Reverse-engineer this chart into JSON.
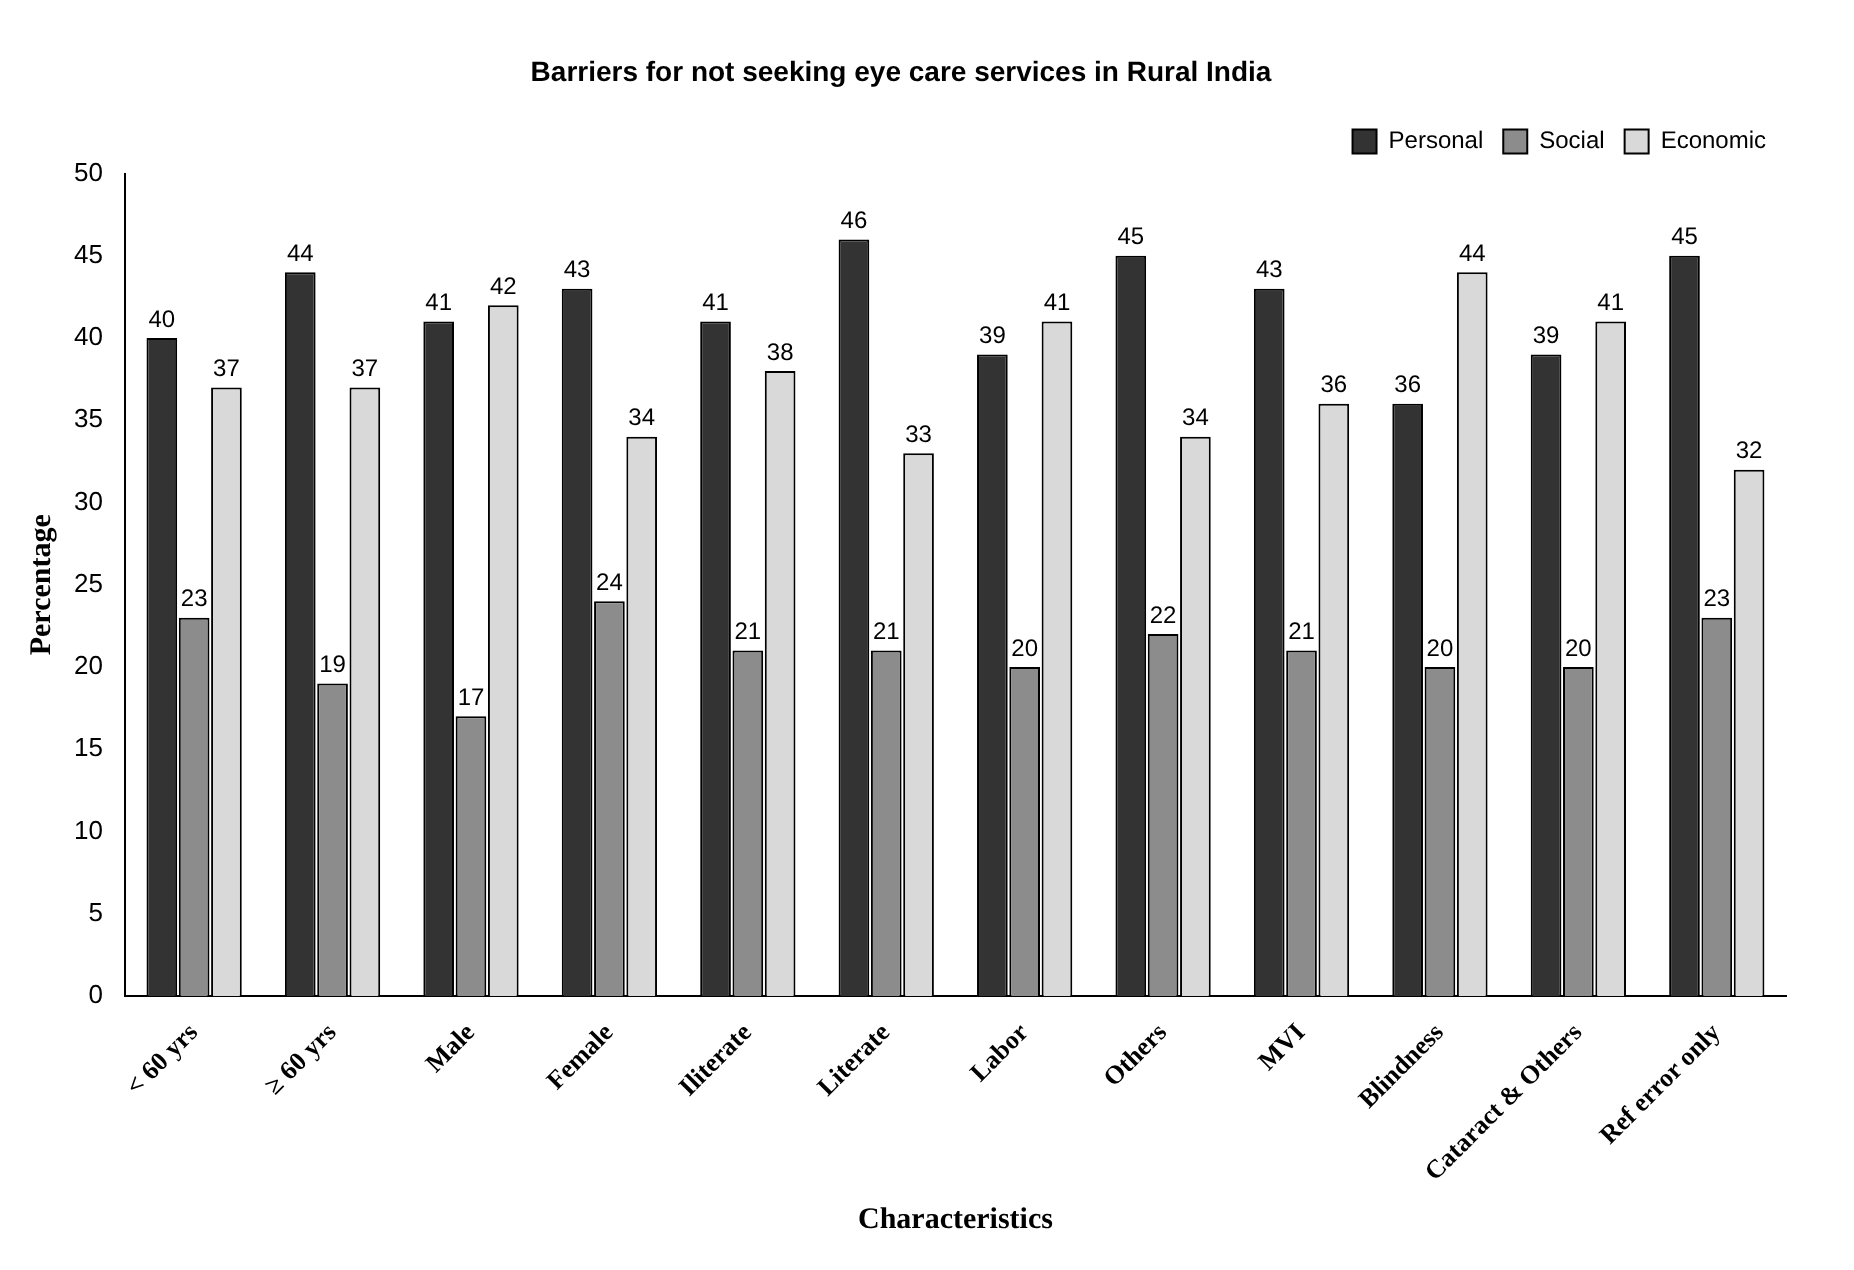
{
  "chart_data": {
    "type": "bar",
    "title": "Barriers for not seeking eye care services in Rural India",
    "xlabel": "Characteristics",
    "ylabel": "Percentage",
    "categories": [
      "< 60 yrs",
      "≥ 60 yrs",
      "Male",
      "Female",
      "Iliterate",
      "Literate",
      "Labor",
      "Others",
      "MVI",
      "Blindness",
      "Cataract & Others",
      "Ref error only"
    ],
    "series": [
      {
        "name": "Personal",
        "color": "#333333",
        "values": [
          40,
          44,
          41,
          43,
          41,
          46,
          39,
          45,
          43,
          36,
          39,
          45
        ]
      },
      {
        "name": "Social",
        "color": "#8c8c8c",
        "values": [
          23,
          19,
          17,
          24,
          21,
          21,
          20,
          22,
          21,
          20,
          20,
          23
        ]
      },
      {
        "name": "Economic",
        "color": "#d9d9d9",
        "values": [
          37,
          37,
          42,
          34,
          38,
          33,
          41,
          34,
          36,
          44,
          41,
          32
        ]
      }
    ],
    "ylim": [
      0,
      50
    ],
    "yticks": [
      0,
      5,
      10,
      15,
      20,
      25,
      30,
      35,
      40,
      45,
      50
    ],
    "grid": false,
    "legend": "top right",
    "data_labels": true
  }
}
